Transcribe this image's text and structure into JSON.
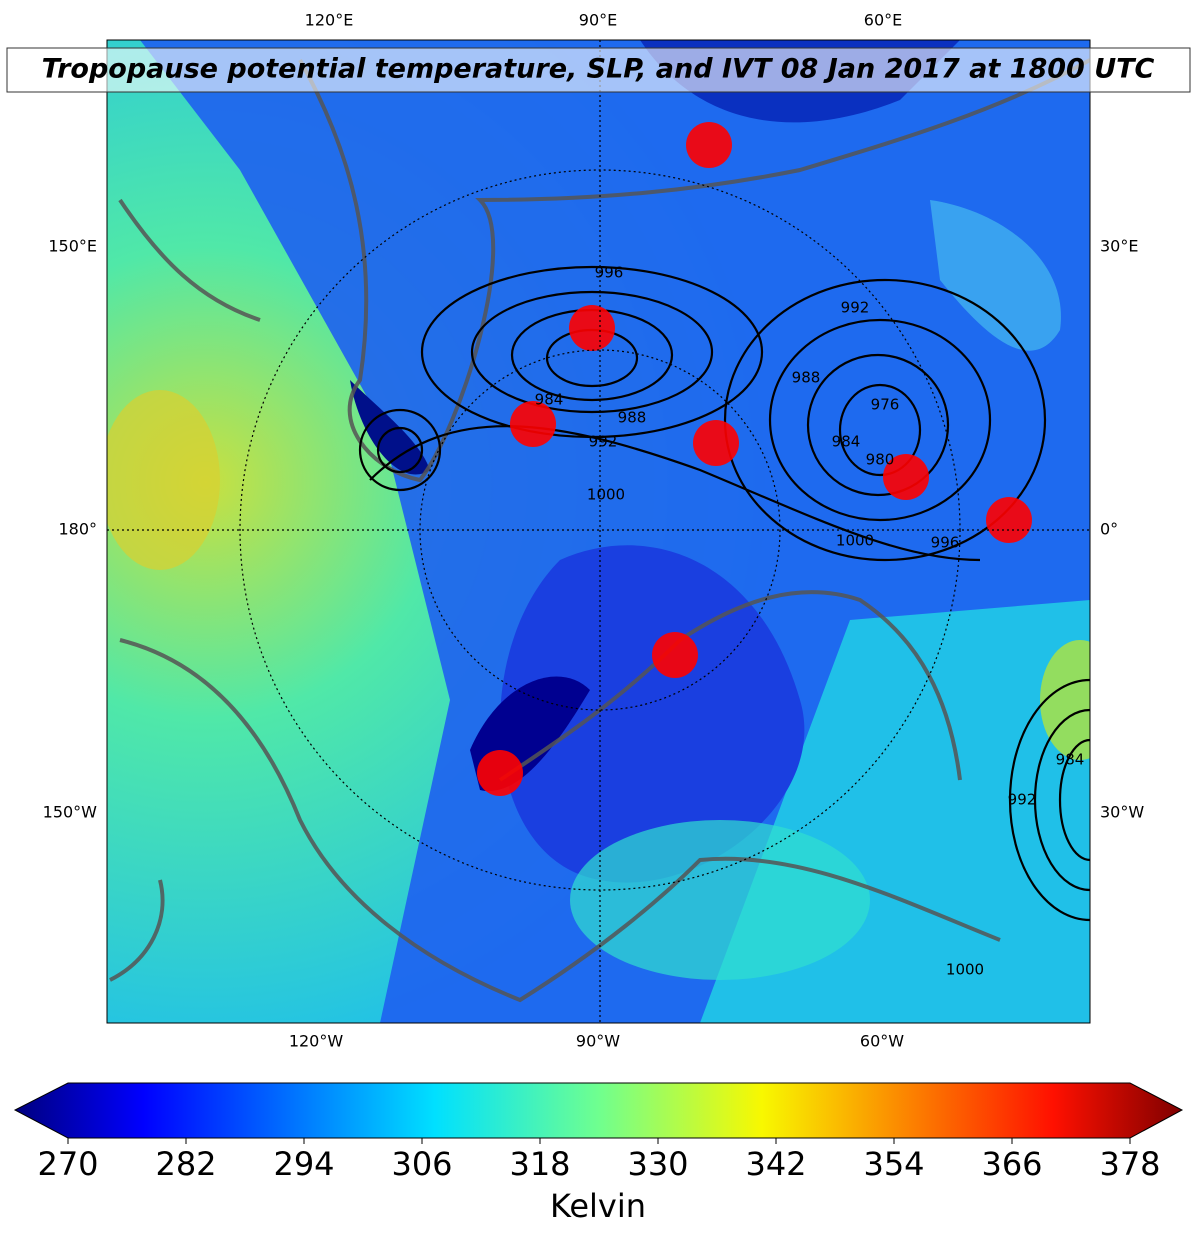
{
  "title": "Tropopause potential temperature, SLP, and IVT 08 Jan 2017 at 1800 UTC",
  "longitude_labels": {
    "top": [
      "120°E",
      "90°E",
      "60°E"
    ],
    "bottom": [
      "120°W",
      "90°W",
      "60°W"
    ],
    "left": [
      "150°E",
      "180°",
      "150°W"
    ],
    "right": [
      "30°E",
      "0°",
      "30°W"
    ]
  },
  "contour_labels": [
    "996",
    "992",
    "984",
    "988",
    "992",
    "1000",
    "988",
    "976",
    "984",
    "980",
    "1000",
    "996",
    "1000",
    "992",
    "984"
  ],
  "colorbar": {
    "ticks": [
      270,
      282,
      294,
      306,
      318,
      330,
      342,
      354,
      366,
      378
    ],
    "label": "Kelvin"
  }
}
